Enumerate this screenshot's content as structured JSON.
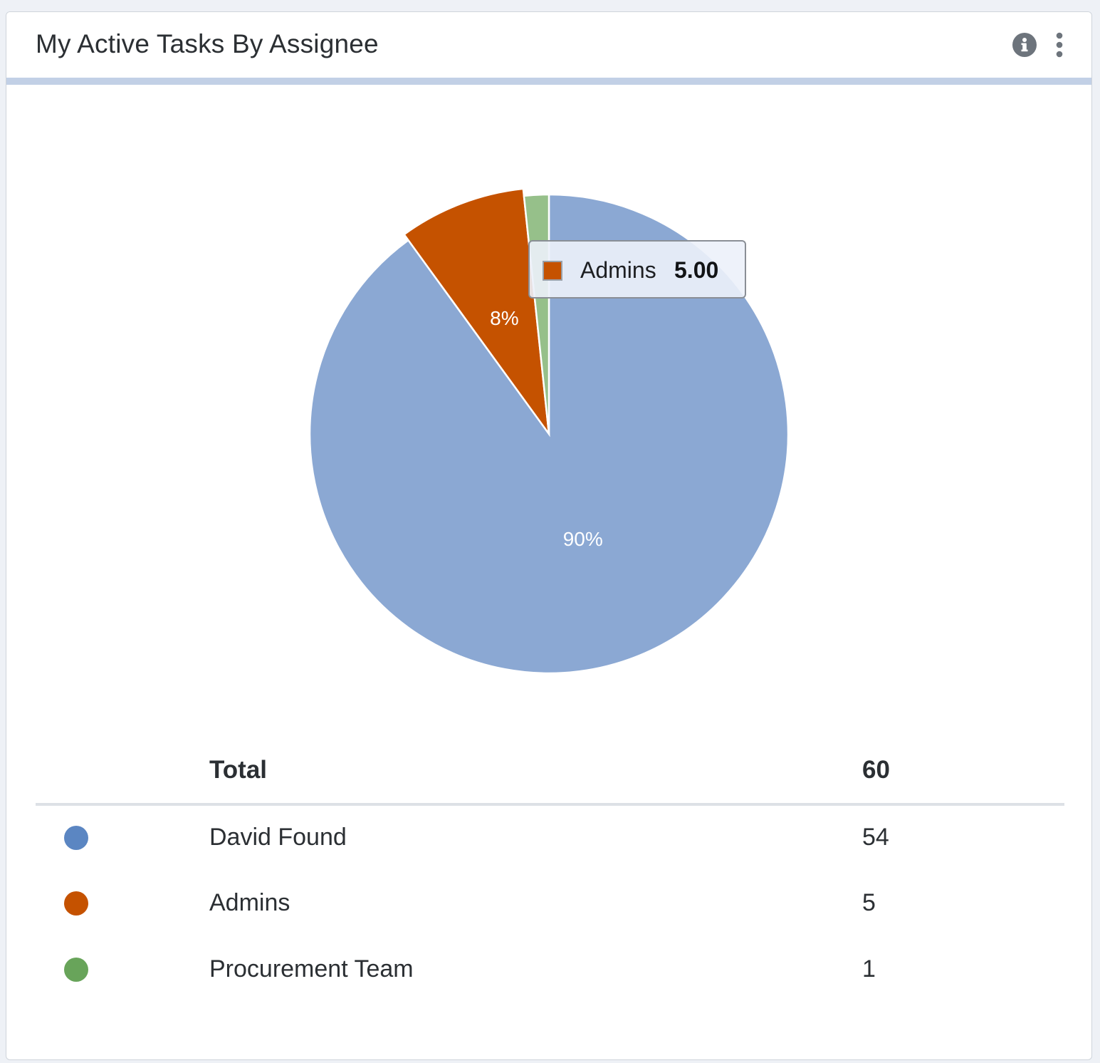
{
  "widget": {
    "title": "My Active Tasks By Assignee",
    "info_icon": "info-icon",
    "menu_icon": "more-vertical-icon"
  },
  "chart_data": {
    "type": "pie",
    "title": "",
    "slices": [
      {
        "label": "David Found",
        "value": 54,
        "percent_label": "90%",
        "color": "#8ba8d3"
      },
      {
        "label": "Admins",
        "value": 5,
        "percent_label": "8%",
        "color": "#c55200"
      },
      {
        "label": "Procurement Team",
        "value": 1,
        "percent_label": "",
        "color": "#96c08a"
      }
    ],
    "tooltip": {
      "label": "Admins",
      "value": "5.00",
      "color": "#c55200"
    }
  },
  "legend": {
    "total_label": "Total",
    "total_value": "60",
    "items": [
      {
        "name": "David Found",
        "value": "54",
        "color": "#5b86c2"
      },
      {
        "name": "Admins",
        "value": "5",
        "color": "#c55200"
      },
      {
        "name": "Procurement Team",
        "value": "1",
        "color": "#68a45a"
      }
    ]
  }
}
